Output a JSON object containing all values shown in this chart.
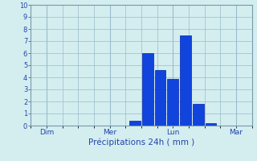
{
  "title": "",
  "xlabel": "Précipitations 24h ( mm )",
  "ylabel": "",
  "background_color": "#d4eef0",
  "bar_color": "#1144dd",
  "bar_edge_color": "#0022aa",
  "grid_color": "#99bbcc",
  "axis_color": "#7799aa",
  "text_color": "#2244aa",
  "ylim": [
    0,
    10
  ],
  "yticks": [
    0,
    1,
    2,
    3,
    4,
    5,
    6,
    7,
    8,
    9,
    10
  ],
  "xtick_labels": [
    "Dim",
    "Mer",
    "Lun",
    "Mar"
  ],
  "xtick_positions": [
    0.5,
    2.5,
    4.5,
    6.5
  ],
  "bar_positions": [
    3.3,
    3.7,
    4.1,
    4.5,
    4.9,
    5.3,
    5.7
  ],
  "bar_values": [
    0.4,
    6.0,
    4.6,
    3.9,
    7.5,
    1.8,
    0.2
  ],
  "bar_width": 0.35,
  "xlim": [
    0,
    7
  ],
  "figsize": [
    3.2,
    2.0
  ],
  "dpi": 100
}
